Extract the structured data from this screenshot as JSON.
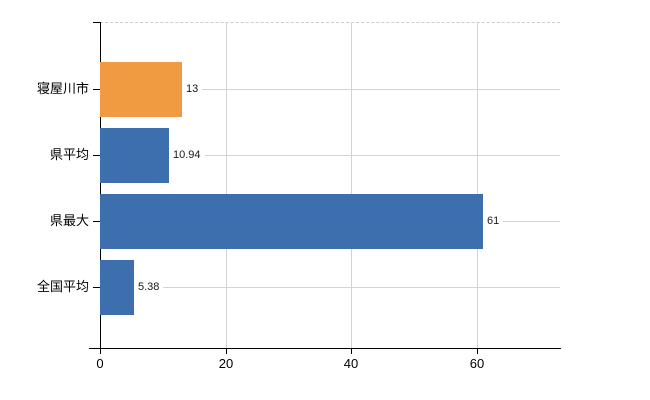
{
  "chart_data": {
    "type": "bar",
    "orientation": "horizontal",
    "title": "",
    "categories": [
      "寝屋川市",
      "県平均",
      "県最大",
      "全国平均"
    ],
    "values": [
      13,
      10.94,
      61,
      5.38
    ],
    "value_labels": [
      "13",
      "10.94",
      "61",
      "5.38"
    ],
    "series": [
      {
        "name": "value",
        "values": [
          13,
          10.94,
          61,
          5.38
        ]
      }
    ],
    "bar_colors": [
      "#f09a41",
      "#3d6fae",
      "#3d6fae",
      "#3d6fae"
    ],
    "xlim": [
      0,
      73.2
    ],
    "x_ticks": [
      0,
      20,
      40,
      60
    ],
    "x_tick_labels": [
      "0",
      "20",
      "40",
      "60"
    ],
    "ylabel": "",
    "xlabel": "",
    "grid": true,
    "legend_position": "none"
  },
  "colors": {
    "axis": "#000000",
    "grid": "#d3d3d3",
    "top_border": "#cbd0cb",
    "text": "#000000",
    "background": "#ffffff"
  }
}
